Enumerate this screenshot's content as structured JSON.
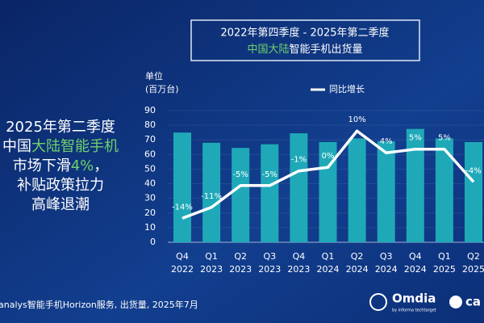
{
  "chart_data": {
    "type": "bar-line",
    "title": "2022年第四季度 - 2025年第二季度",
    "subtitle": [
      {
        "text": "中国大陆",
        "highlight": true
      },
      {
        "text": "智能手机出货量",
        "highlight": false
      }
    ],
    "headline": [
      [
        {
          "text": "2025年第二季度",
          "highlight": false
        }
      ],
      [
        {
          "text": "中国",
          "highlight": false
        },
        {
          "text": "大陆智能手机",
          "highlight": true
        }
      ],
      [
        {
          "text": "市场下滑",
          "highlight": false
        },
        {
          "text": "4%",
          "highlight": true
        },
        {
          "text": "，",
          "highlight": false
        }
      ],
      [
        {
          "text": "补贴政策拉力",
          "highlight": false
        }
      ],
      [
        {
          "text": "高峰退潮",
          "highlight": false
        }
      ]
    ],
    "y_label": [
      "单位",
      "(百万台)"
    ],
    "categories": [
      [
        "Q4",
        "2022"
      ],
      [
        "Q1",
        "2023"
      ],
      [
        "Q2",
        "2023"
      ],
      [
        "Q3",
        "2023"
      ],
      [
        "Q4",
        "2023"
      ],
      [
        "Q1",
        "2024"
      ],
      [
        "Q2",
        "2024"
      ],
      [
        "Q3",
        "2024"
      ],
      [
        "Q4",
        "2024"
      ],
      [
        "Q1",
        "2025"
      ],
      [
        "Q2",
        "2025"
      ]
    ],
    "series": [
      {
        "name": null,
        "type": "bar",
        "color": "#1fa9b8",
        "values": [
          75,
          68,
          64.5,
          67,
          74.5,
          68.5,
          71,
          69,
          77.5,
          71,
          68.5
        ]
      },
      {
        "name": "同比增长",
        "type": "line",
        "axis": "y2",
        "color": "#ffffff",
        "values": [
          -14,
          -11,
          -5,
          -5,
          -1,
          0,
          10,
          4,
          5,
          5,
          -4
        ],
        "value_labels": [
          "-14%",
          "-11%",
          "-5%",
          "-5%",
          "-1%",
          "0%",
          "10%",
          "4%",
          "5%",
          "5%",
          "-4%"
        ]
      }
    ],
    "ylim": [
      0,
      90
    ],
    "yticks": [
      0,
      10,
      20,
      30,
      40,
      50,
      60,
      70,
      80,
      90
    ],
    "y2lim": [
      -20.6,
      15.6
    ],
    "source": "analys智能手机Horizon服务, 出货量, 2025年7月",
    "logo": "Omdia",
    "logo_sub": "by informa techtarget",
    "logo2": "ca"
  }
}
